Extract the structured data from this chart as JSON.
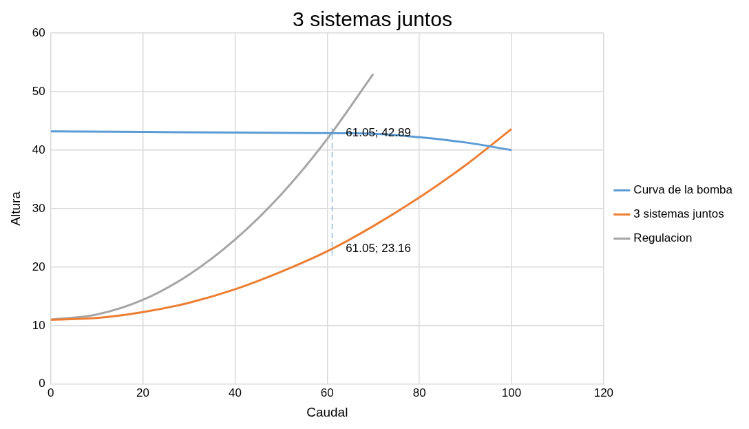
{
  "chart_data": {
    "type": "line",
    "title": "3 sistemas juntos",
    "xlabel": "Caudal",
    "ylabel": "Altura",
    "xlim": [
      0,
      120
    ],
    "xticks": [
      0,
      20,
      40,
      60,
      80,
      100,
      120
    ],
    "ylim": [
      0,
      60
    ],
    "yticks": [
      0,
      10,
      20,
      30,
      40,
      50,
      60
    ],
    "grid": true,
    "legend": "right",
    "marker": "none",
    "line_style": "solid",
    "series": [
      {
        "name": "Curva de la bomba",
        "color": "#5b9bd5",
        "x": [
          0,
          20,
          40,
          60,
          70,
          80,
          90,
          100
        ],
        "values": [
          43.2,
          43.1,
          43.0,
          42.9,
          42.8,
          42.2,
          41.3,
          40.0
        ]
      },
      {
        "name": "3 sistemas juntos",
        "color": "#ed7d31",
        "x": [
          0,
          10,
          20,
          30,
          40,
          50,
          60,
          70,
          80,
          90,
          100
        ],
        "values": [
          11.0,
          11.3,
          12.3,
          13.9,
          16.2,
          19.2,
          22.7,
          27.0,
          31.9,
          37.4,
          43.6
        ]
      },
      {
        "name": "Regulacion",
        "color": "#a5a5a5",
        "x": [
          0,
          10,
          20,
          30,
          40,
          50,
          60,
          70
        ],
        "values": [
          11.0,
          11.9,
          14.4,
          18.7,
          24.7,
          32.4,
          41.9,
          53.0
        ]
      },
      {
        "color": "#5b9bd5",
        "line_style": "dashed",
        "x": [
          61.05,
          61.05
        ],
        "values": [
          21.9,
          43.8
        ]
      }
    ],
    "annotations": [
      {
        "text": "61.05; 42.89",
        "x": 61.05,
        "y": 42.89
      },
      {
        "text": "61.05; 23.16",
        "x": 61.05,
        "y": 23.16
      }
    ]
  }
}
